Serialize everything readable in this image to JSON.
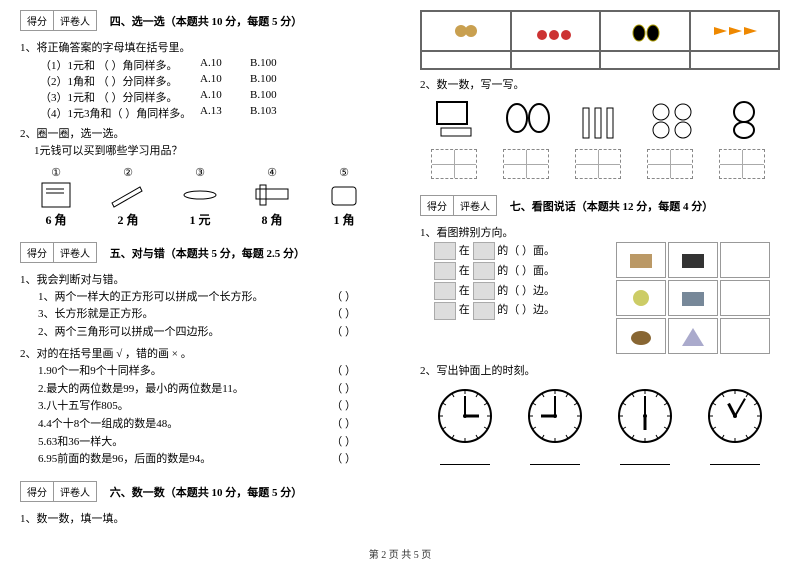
{
  "scorebox": {
    "score": "得分",
    "reviewer": "评卷人"
  },
  "sec4": {
    "title": "四、选一选（本题共 10 分，每题 5 分）",
    "q1": "1、将正确答案的字母填在括号里。",
    "rows": [
      {
        "label": "（1）1元和 （    ）角同样多。",
        "a": "A.10",
        "b": "B.100"
      },
      {
        "label": "（2）1角和 （    ）分同样多。",
        "a": "A.10",
        "b": "B.100"
      },
      {
        "label": "（3）1元和 （    ）分同样多。",
        "a": "A.10",
        "b": "B.100"
      },
      {
        "label": "（4）1元3角和（    ）角同样多。",
        "a": "A.13",
        "b": "B.103"
      }
    ],
    "q2": "2、圈一圈，选一选。",
    "q2sub": "1元钱可以买到哪些学习用品？",
    "items": [
      {
        "num": "①",
        "price": "6 角"
      },
      {
        "num": "②",
        "price": "2 角"
      },
      {
        "num": "③",
        "price": "1 元"
      },
      {
        "num": "④",
        "price": "8 角"
      },
      {
        "num": "⑤",
        "price": "1 角"
      }
    ]
  },
  "sec5": {
    "title": "五、对与错（本题共 5 分，每题 2.5 分）",
    "q1": "1、我会判断对与错。",
    "q1items": [
      "1、两个一样大的正方形可以拼成一个长方形。",
      "3、长方形就是正方形。",
      "2、两个三角形可以拼成一个四边形。"
    ],
    "q2": "2、对的在括号里画 √ ，错的画 × 。",
    "q2items": [
      "1.90个一和9个十同样多。",
      "2.最大的两位数是99，最小的两位数是11。",
      "3.八十五写作805。",
      "4.4个十8个一组成的数是48。",
      "5.63和36一样大。",
      "6.95前面的数是96，后面的数是94。"
    ],
    "paren": "（       ）"
  },
  "sec6": {
    "title": "六、数一数（本题共 10 分，每题 5 分）",
    "q1": "1、数一数，填一填。"
  },
  "sec6b": {
    "q2": "2、数一数，写一写。"
  },
  "sec7": {
    "title": "七、看图说话（本题共 12 分，每题 4 分）",
    "q1": "1、看图辨别方向。",
    "lines": [
      {
        "a": "在",
        "b": "的（     ）面。"
      },
      {
        "a": "在",
        "b": "的（     ）面。"
      },
      {
        "a": "在",
        "b": "的（     ）边。"
      },
      {
        "a": "在",
        "b": "的（     ）边。"
      }
    ],
    "q2": "2、写出钟面上的时刻。",
    "clocks": [
      {
        "h": 3,
        "m": 0
      },
      {
        "h": 9,
        "m": 0
      },
      {
        "h": 6,
        "m": 0
      },
      {
        "h": 11,
        "m": 5
      }
    ]
  },
  "footer": "第 2 页 共 5 页"
}
